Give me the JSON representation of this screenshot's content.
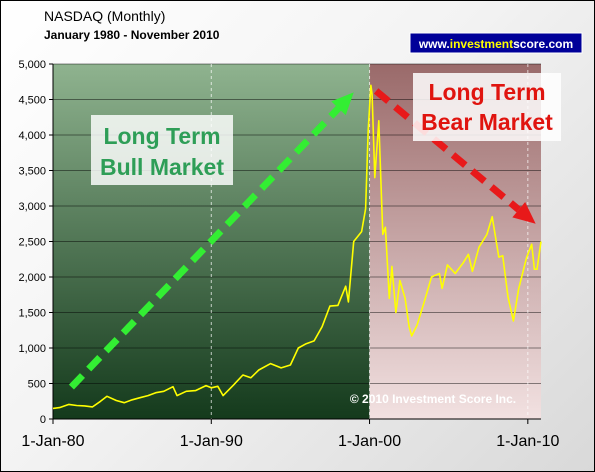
{
  "chart_data": {
    "type": "line",
    "title": "NASDAQ (Monthly)",
    "subtitle": "January 1980 - November 2010",
    "xlabel": "",
    "ylabel": "",
    "xlim": [
      "1980-01-01",
      "2010-11-01"
    ],
    "ylim": [
      0,
      5000
    ],
    "y_ticks": [
      0,
      500,
      1000,
      1500,
      2000,
      2500,
      3000,
      3500,
      4000,
      4500,
      5000
    ],
    "y_tick_labels": [
      "0",
      "500",
      "1,000",
      "1,500",
      "2,000",
      "2,500",
      "3,000",
      "3,500",
      "4,000",
      "4,500",
      "5,000"
    ],
    "x_ticks": [
      "1980-01-01",
      "1990-01-01",
      "2000-01-01",
      "2010-01-01"
    ],
    "x_tick_labels": [
      "1-Jan-80",
      "1-Jan-90",
      "1-Jan-00",
      "1-Jan-10"
    ],
    "grid": "vertical dashed at x ticks, horizontal lines at y ticks",
    "series": [
      {
        "color": "#ffff00",
        "points": [
          [
            "1980-01-01",
            150
          ],
          [
            "1980-06-01",
            160
          ],
          [
            "1981-01-01",
            205
          ],
          [
            "1981-07-01",
            190
          ],
          [
            "1982-01-01",
            185
          ],
          [
            "1982-07-01",
            170
          ],
          [
            "1983-01-01",
            250
          ],
          [
            "1983-06-01",
            320
          ],
          [
            "1984-01-01",
            260
          ],
          [
            "1984-07-01",
            230
          ],
          [
            "1985-01-01",
            270
          ],
          [
            "1985-07-01",
            300
          ],
          [
            "1986-01-01",
            330
          ],
          [
            "1986-07-01",
            370
          ],
          [
            "1987-01-01",
            390
          ],
          [
            "1987-08-01",
            455
          ],
          [
            "1987-11-01",
            330
          ],
          [
            "1988-06-01",
            390
          ],
          [
            "1989-01-01",
            400
          ],
          [
            "1989-09-01",
            470
          ],
          [
            "1990-01-01",
            440
          ],
          [
            "1990-06-01",
            460
          ],
          [
            "1990-10-01",
            330
          ],
          [
            "1991-06-01",
            480
          ],
          [
            "1992-01-01",
            620
          ],
          [
            "1992-07-01",
            580
          ],
          [
            "1993-01-01",
            690
          ],
          [
            "1993-10-01",
            780
          ],
          [
            "1994-06-01",
            720
          ],
          [
            "1995-01-01",
            760
          ],
          [
            "1995-07-01",
            1000
          ],
          [
            "1996-01-01",
            1060
          ],
          [
            "1996-07-01",
            1100
          ],
          [
            "1997-01-01",
            1300
          ],
          [
            "1997-07-01",
            1590
          ],
          [
            "1998-01-01",
            1600
          ],
          [
            "1998-07-01",
            1870
          ],
          [
            "1998-09-01",
            1650
          ],
          [
            "1999-01-01",
            2500
          ],
          [
            "1999-07-01",
            2640
          ],
          [
            "1999-10-01",
            2960
          ],
          [
            "1999-12-01",
            4070
          ],
          [
            "2000-02-01",
            4700
          ],
          [
            "2000-03-01",
            4570
          ],
          [
            "2000-05-01",
            3400
          ],
          [
            "2000-08-01",
            4200
          ],
          [
            "2000-09-01",
            3670
          ],
          [
            "2000-11-01",
            2600
          ],
          [
            "2001-01-01",
            2700
          ],
          [
            "2001-04-01",
            1700
          ],
          [
            "2001-06-01",
            2150
          ],
          [
            "2001-09-01",
            1500
          ],
          [
            "2001-12-01",
            1950
          ],
          [
            "2002-04-01",
            1700
          ],
          [
            "2002-07-01",
            1300
          ],
          [
            "2002-09-01",
            1170
          ],
          [
            "2003-01-01",
            1320
          ],
          [
            "2003-06-01",
            1620
          ],
          [
            "2003-12-01",
            2000
          ],
          [
            "2004-06-01",
            2050
          ],
          [
            "2004-08-01",
            1840
          ],
          [
            "2004-12-01",
            2170
          ],
          [
            "2005-06-01",
            2050
          ],
          [
            "2005-12-01",
            2200
          ],
          [
            "2006-04-01",
            2320
          ],
          [
            "2006-07-01",
            2080
          ],
          [
            "2006-12-01",
            2420
          ],
          [
            "2007-06-01",
            2600
          ],
          [
            "2007-10-01",
            2850
          ],
          [
            "2008-03-01",
            2280
          ],
          [
            "2008-06-01",
            2300
          ],
          [
            "2008-10-01",
            1720
          ],
          [
            "2009-02-01",
            1380
          ],
          [
            "2009-06-01",
            1830
          ],
          [
            "2009-12-01",
            2270
          ],
          [
            "2010-04-01",
            2460
          ],
          [
            "2010-06-01",
            2110
          ],
          [
            "2010-08-01",
            2110
          ],
          [
            "2010-11-01",
            2500
          ]
        ]
      }
    ],
    "annotations": [
      {
        "name": "bull-label",
        "lines": [
          "Long Term",
          "Bull Market"
        ],
        "color": "#2e9e57"
      },
      {
        "name": "bear-label",
        "lines": [
          "Long Term",
          "Bear Market"
        ],
        "color": "#e0140f"
      }
    ],
    "arrows": [
      {
        "name": "bull-arrow",
        "from": [
          "1981-03-01",
          450
        ],
        "to": [
          "1999-01-01",
          4600
        ],
        "color": "#33ee33"
      },
      {
        "name": "bear-arrow",
        "from": [
          "2000-06-01",
          4620
        ],
        "to": [
          "2010-07-01",
          2750
        ],
        "color": "#e8191a"
      }
    ],
    "regions": [
      {
        "name": "bull-region",
        "from": "1980-01-01",
        "to": "2000-01-01",
        "color": "#3f7f4f"
      },
      {
        "name": "bear-region",
        "from": "2000-01-01",
        "to": "2010-11-01",
        "color": "#8c4848"
      }
    ]
  },
  "copyright": "© 2010 Investment Score Inc.",
  "badge": {
    "prefix": "www.",
    "brand_a": "investment",
    "brand_b": "score",
    "suffix": ".com"
  }
}
